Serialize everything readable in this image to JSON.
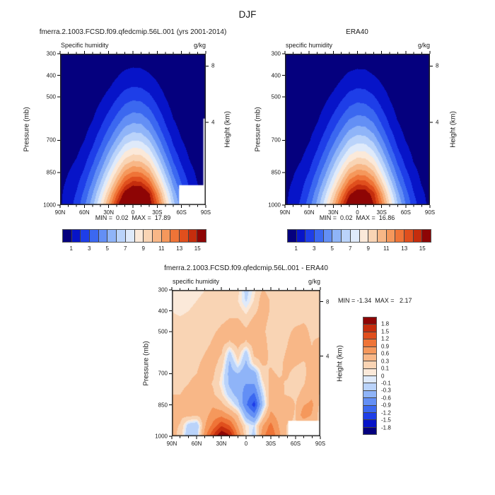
{
  "main_title": "DJF",
  "panels": [
    {
      "title": "fmerra.2.1003.FCSD.f09.qfedcmip.56L.001 (yrs 2001-2014)",
      "subtitle_left": "Specific humidity",
      "subtitle_right": "g/kg",
      "minmax": "MIN =  0.02  MAX =  17.89"
    },
    {
      "title": "ERA40",
      "subtitle_left": "specific humidity",
      "subtitle_right": "g/kg",
      "minmax": "MIN =  0.02  MAX =  16.86"
    },
    {
      "title": "fmerra.2.1003.FCSD.f09.qfedcmip.56L.001 - ERA40",
      "subtitle_left": "specific humidity",
      "subtitle_right": "g/kg",
      "minmax": "MIN = -1.34  MAX =   2.17"
    }
  ],
  "axes": {
    "pressure_label": "Pressure (mb)",
    "height_label": "Height (km)",
    "pressure_ticks": [
      "300",
      "400",
      "500",
      "700",
      "850",
      "1000"
    ],
    "pressure_tick_values": [
      300,
      400,
      500,
      700,
      850,
      1000
    ],
    "lat_ticks": [
      "90N",
      "60N",
      "30N",
      "0",
      "30S",
      "60S",
      "90S"
    ],
    "lat_tick_values": [
      90,
      60,
      30,
      0,
      -30,
      -60,
      -90
    ],
    "height_ticks": [
      "8",
      "4"
    ],
    "height_tick_pressures": [
      356.5,
      616.6
    ],
    "pressure_range": [
      300,
      1000
    ],
    "lat_range": [
      90,
      -90
    ]
  },
  "colorbar_top_labels": [
    "1",
    "3",
    "5",
    "7",
    "9",
    "11",
    "13",
    "15"
  ],
  "colorbar_diff_labels": [
    "1.8",
    "1.5",
    "1.2",
    "0.9",
    "0.6",
    "0.3",
    "0.1",
    "0",
    "-0.1",
    "-0.3",
    "-0.6",
    "-0.9",
    "-1.2",
    "-1.5",
    "-1.8"
  ],
  "palette": [
    "#05007E",
    "#0714C8",
    "#1E3EE8",
    "#3B68F0",
    "#638FF5",
    "#8FB4F8",
    "#BAD3FA",
    "#DFEAFA",
    "#FBE9D9",
    "#F9D4B4",
    "#F8B787",
    "#F5985C",
    "#EF7437",
    "#E04F1D",
    "#C52D0D",
    "#8E0505"
  ],
  "chart_data": [
    {
      "id": "model",
      "type": "heatmap",
      "title": "fmerra.2.1003.FCSD.f09.qfedcmip.56L.001 (yrs 2001-2014)",
      "variable": "Specific humidity",
      "units": "g/kg",
      "min": 0.02,
      "max": 17.89,
      "levels": [
        1,
        2,
        3,
        4,
        5,
        6,
        7,
        8,
        9,
        10,
        11,
        12,
        13,
        14,
        15
      ],
      "lat": [
        90,
        80,
        70,
        60,
        50,
        40,
        30,
        20,
        10,
        0,
        -10,
        -20,
        -30,
        -40,
        -50,
        -60,
        -70,
        -80,
        -90
      ],
      "pressure": [
        300,
        350,
        400,
        450,
        500,
        550,
        600,
        650,
        700,
        750,
        800,
        850,
        900,
        950,
        1000
      ],
      "values": [
        [
          0.02,
          0.03,
          0.04,
          0.05,
          0.08,
          0.12,
          0.2,
          0.3,
          0.45,
          0.5,
          0.5,
          0.4,
          0.3,
          0.2,
          0.12,
          0.08,
          0.05,
          0.04,
          0.03
        ],
        [
          0.03,
          0.04,
          0.05,
          0.08,
          0.12,
          0.2,
          0.35,
          0.55,
          0.78,
          0.88,
          0.85,
          0.7,
          0.5,
          0.3,
          0.18,
          0.1,
          0.07,
          0.05,
          0.04
        ],
        [
          0.04,
          0.05,
          0.07,
          0.12,
          0.2,
          0.35,
          0.6,
          0.92,
          1.25,
          1.38,
          1.32,
          1.1,
          0.8,
          0.5,
          0.25,
          0.14,
          0.09,
          0.06,
          0.05
        ],
        [
          0.05,
          0.07,
          0.1,
          0.18,
          0.3,
          0.55,
          0.9,
          1.32,
          1.78,
          1.98,
          1.9,
          1.6,
          1.15,
          0.7,
          0.38,
          0.2,
          0.12,
          0.08,
          0.06
        ],
        [
          0.07,
          0.1,
          0.15,
          0.28,
          0.5,
          0.85,
          1.3,
          1.9,
          2.48,
          2.75,
          2.65,
          2.25,
          1.6,
          1.0,
          0.55,
          0.3,
          0.17,
          0.1,
          0.08
        ],
        [
          0.1,
          0.14,
          0.22,
          0.4,
          0.7,
          1.2,
          1.8,
          2.55,
          3.28,
          3.6,
          3.5,
          3.0,
          2.15,
          1.35,
          0.75,
          0.42,
          0.24,
          0.14,
          0.1
        ],
        [
          0.14,
          0.2,
          0.3,
          0.55,
          0.95,
          1.6,
          2.4,
          3.3,
          4.2,
          4.55,
          4.45,
          3.85,
          2.8,
          1.8,
          1.0,
          0.58,
          0.33,
          0.19,
          0.13
        ],
        [
          0.2,
          0.28,
          0.42,
          0.75,
          1.3,
          2.1,
          3.1,
          4.2,
          5.25,
          5.65,
          5.55,
          4.8,
          3.55,
          2.3,
          1.35,
          0.78,
          0.45,
          0.26,
          0.17
        ],
        [
          0.28,
          0.4,
          0.6,
          1.0,
          1.7,
          2.7,
          3.9,
          5.2,
          6.45,
          6.95,
          6.85,
          6.0,
          4.5,
          3.0,
          1.8,
          1.05,
          0.6,
          0.35,
          0.22
        ],
        [
          0.4,
          0.55,
          0.8,
          1.35,
          2.2,
          3.4,
          4.85,
          6.4,
          7.85,
          8.45,
          8.35,
          7.4,
          5.6,
          3.8,
          2.3,
          1.4,
          0.8,
          0.45,
          0.28
        ],
        [
          0.55,
          0.75,
          1.1,
          1.75,
          2.8,
          4.2,
          5.9,
          7.75,
          9.45,
          10.15,
          10.0,
          9.0,
          6.9,
          4.8,
          3.0,
          1.85,
          1.05,
          0.6,
          0.35
        ],
        [
          0.7,
          1.0,
          1.4,
          2.2,
          3.5,
          5.1,
          7.1,
          9.25,
          11.3,
          12.15,
          12.0,
          10.8,
          8.4,
          5.9,
          3.8,
          2.4,
          1.4,
          0.8,
          0.45
        ],
        [
          0.82,
          1.15,
          1.75,
          2.75,
          4.2,
          6.1,
          8.4,
          10.95,
          13.35,
          14.45,
          14.3,
          12.9,
          10.1,
          7.2,
          4.7,
          3.0,
          1.8,
          1.0,
          0.6
        ],
        [
          0.88,
          1.35,
          2.1,
          3.3,
          5.0,
          7.2,
          9.9,
          12.85,
          15.65,
          16.95,
          16.8,
          15.2,
          12.0,
          8.6,
          5.7,
          3.7,
          2.2,
          1.3,
          0.7
        ],
        [
          0.9,
          1.5,
          2.4,
          3.8,
          5.7,
          8.2,
          11.2,
          14.5,
          17.4,
          17.89,
          17.7,
          16.0,
          13.2,
          9.7,
          6.5,
          4.3,
          2.6,
          1.5,
          0.8
        ]
      ],
      "mask_rects": [
        {
          "lat": [
            -57,
            -90
          ],
          "p": [
            908,
            1000
          ]
        },
        {
          "lat": [
            -87,
            -90
          ],
          "p": [
            600,
            1000
          ]
        }
      ]
    },
    {
      "id": "era40",
      "type": "heatmap",
      "title": "ERA40",
      "variable": "specific humidity",
      "units": "g/kg",
      "min": 0.02,
      "max": 16.86,
      "levels": [
        1,
        2,
        3,
        4,
        5,
        6,
        7,
        8,
        9,
        10,
        11,
        12,
        13,
        14,
        15
      ],
      "lat": [
        90,
        80,
        70,
        60,
        50,
        40,
        30,
        20,
        10,
        0,
        -10,
        -20,
        -30,
        -40,
        -50,
        -60,
        -70,
        -80,
        -90
      ],
      "pressure": [
        300,
        350,
        400,
        450,
        500,
        550,
        600,
        650,
        700,
        750,
        800,
        850,
        900,
        950,
        1000
      ],
      "values": [
        [
          0.02,
          0.03,
          0.04,
          0.05,
          0.07,
          0.11,
          0.18,
          0.28,
          0.42,
          0.48,
          0.47,
          0.38,
          0.28,
          0.18,
          0.11,
          0.07,
          0.05,
          0.04,
          0.03
        ],
        [
          0.03,
          0.04,
          0.05,
          0.07,
          0.11,
          0.18,
          0.32,
          0.5,
          0.72,
          0.82,
          0.8,
          0.66,
          0.46,
          0.28,
          0.16,
          0.09,
          0.06,
          0.05,
          0.04
        ],
        [
          0.04,
          0.05,
          0.06,
          0.11,
          0.18,
          0.32,
          0.55,
          0.85,
          1.18,
          1.3,
          1.25,
          1.02,
          0.74,
          0.46,
          0.23,
          0.13,
          0.08,
          0.06,
          0.05
        ],
        [
          0.05,
          0.06,
          0.09,
          0.16,
          0.28,
          0.5,
          0.84,
          1.24,
          1.68,
          1.88,
          1.8,
          1.5,
          1.08,
          0.66,
          0.35,
          0.18,
          0.11,
          0.07,
          0.06
        ],
        [
          0.06,
          0.09,
          0.14,
          0.26,
          0.46,
          0.8,
          1.22,
          1.8,
          2.35,
          2.6,
          2.5,
          2.12,
          1.5,
          0.94,
          0.5,
          0.28,
          0.16,
          0.09,
          0.07
        ],
        [
          0.09,
          0.13,
          0.2,
          0.37,
          0.65,
          1.12,
          1.7,
          2.4,
          3.1,
          3.4,
          3.3,
          2.84,
          2.0,
          1.26,
          0.7,
          0.4,
          0.22,
          0.13,
          0.09
        ],
        [
          0.13,
          0.18,
          0.28,
          0.5,
          0.88,
          1.5,
          2.26,
          3.12,
          3.95,
          4.3,
          4.2,
          3.64,
          2.64,
          1.68,
          0.94,
          0.54,
          0.3,
          0.18,
          0.12
        ],
        [
          0.18,
          0.26,
          0.39,
          0.7,
          1.2,
          1.96,
          2.92,
          3.96,
          4.95,
          5.35,
          5.25,
          4.55,
          3.35,
          2.16,
          1.26,
          0.73,
          0.42,
          0.24,
          0.16
        ],
        [
          0.26,
          0.37,
          0.56,
          0.93,
          1.6,
          2.52,
          3.66,
          4.9,
          6.1,
          6.6,
          6.5,
          5.7,
          4.25,
          2.82,
          1.68,
          0.98,
          0.56,
          0.33,
          0.21
        ],
        [
          0.37,
          0.51,
          0.75,
          1.26,
          2.06,
          3.18,
          4.55,
          6.0,
          7.4,
          8.0,
          7.9,
          7.0,
          5.3,
          3.58,
          2.16,
          1.31,
          0.75,
          0.42,
          0.26
        ],
        [
          0.51,
          0.7,
          1.03,
          1.64,
          2.62,
          3.94,
          5.55,
          7.3,
          8.9,
          9.6,
          9.45,
          8.5,
          6.5,
          4.52,
          2.82,
          1.73,
          0.98,
          0.56,
          0.33
        ],
        [
          0.65,
          0.93,
          1.31,
          2.06,
          3.28,
          4.8,
          6.7,
          8.7,
          10.7,
          11.5,
          11.35,
          10.2,
          7.9,
          5.55,
          3.57,
          2.25,
          1.31,
          0.75,
          0.42
        ],
        [
          0.77,
          1.08,
          1.64,
          2.58,
          3.95,
          5.75,
          7.9,
          10.3,
          12.6,
          13.7,
          13.55,
          12.2,
          9.5,
          6.77,
          4.42,
          2.82,
          1.69,
          0.94,
          0.56
        ],
        [
          0.83,
          1.27,
          1.97,
          3.1,
          4.7,
          6.8,
          9.3,
          12.1,
          14.8,
          16.0,
          15.9,
          14.35,
          11.3,
          8.1,
          5.36,
          3.48,
          2.07,
          1.22,
          0.66
        ],
        [
          0.85,
          1.41,
          2.26,
          3.57,
          5.36,
          7.7,
          10.5,
          13.6,
          16.4,
          16.86,
          16.7,
          15.1,
          12.4,
          9.1,
          6.1,
          4.04,
          2.44,
          1.41,
          0.75
        ]
      ],
      "mask_rects": []
    },
    {
      "id": "diff",
      "type": "heatmap",
      "title": "fmerra.2.1003.FCSD.f09.qfedcmip.56L.001 - ERA40",
      "variable": "specific humidity",
      "units": "g/kg",
      "min": -1.34,
      "max": 2.17,
      "levels": [
        -1.8,
        -1.5,
        -1.2,
        -0.9,
        -0.6,
        -0.3,
        -0.1,
        0,
        0.1,
        0.3,
        0.6,
        0.9,
        1.2,
        1.5,
        1.8
      ],
      "lat": [
        90,
        80,
        70,
        60,
        50,
        40,
        30,
        20,
        10,
        0,
        -10,
        -20,
        -30,
        -40,
        -50,
        -60,
        -70,
        -80,
        -90
      ],
      "pressure": [
        300,
        350,
        400,
        450,
        500,
        550,
        600,
        650,
        700,
        750,
        800,
        850,
        900,
        950,
        1000
      ],
      "values": [
        [
          0.1,
          0.1,
          0.08,
          0.08,
          0.1,
          0.12,
          0.15,
          0.18,
          0.15,
          -0.18,
          0.05,
          0.32,
          0.22,
          0.15,
          0.12,
          0.1,
          0.1,
          0.12,
          0.12
        ],
        [
          0.1,
          0.08,
          0.08,
          0.1,
          0.12,
          0.15,
          0.18,
          0.22,
          0.1,
          -0.12,
          0.12,
          0.42,
          0.28,
          0.18,
          0.12,
          0.1,
          0.12,
          0.15,
          0.12
        ],
        [
          0.1,
          0.08,
          0.1,
          0.12,
          0.15,
          0.18,
          0.22,
          0.26,
          0.2,
          0.05,
          0.25,
          0.4,
          0.28,
          0.2,
          0.15,
          0.12,
          0.18,
          0.18,
          0.15
        ],
        [
          0.12,
          0.12,
          0.14,
          0.15,
          0.18,
          0.22,
          0.28,
          0.32,
          0.35,
          0.22,
          0.38,
          0.35,
          0.26,
          0.2,
          0.18,
          0.22,
          0.28,
          0.2,
          0.15
        ],
        [
          0.15,
          0.15,
          0.17,
          0.18,
          0.22,
          0.28,
          0.34,
          0.38,
          0.45,
          0.35,
          0.45,
          0.33,
          0.24,
          0.18,
          0.22,
          0.38,
          0.42,
          0.22,
          0.18
        ],
        [
          0.17,
          0.17,
          0.19,
          0.22,
          0.25,
          0.32,
          0.38,
          0.28,
          0.4,
          0.28,
          0.42,
          0.38,
          0.23,
          0.17,
          0.28,
          0.48,
          0.48,
          0.28,
          0.42
        ],
        [
          0.2,
          0.2,
          0.22,
          0.25,
          0.3,
          0.36,
          0.32,
          -0.15,
          0.25,
          -0.2,
          0.38,
          0.38,
          0.26,
          0.19,
          0.33,
          0.43,
          0.38,
          0.33,
          0.52
        ],
        [
          0.22,
          0.22,
          0.26,
          0.28,
          0.33,
          0.38,
          0.22,
          -0.35,
          0.05,
          -0.35,
          0.18,
          0.33,
          0.28,
          0.23,
          0.38,
          0.33,
          0.28,
          0.38,
          0.48
        ],
        [
          0.26,
          0.26,
          0.28,
          0.3,
          0.36,
          0.33,
          0.08,
          -0.4,
          -0.3,
          -0.5,
          -0.45,
          0.22,
          0.33,
          0.28,
          0.33,
          0.23,
          0.23,
          0.43,
          0.38
        ],
        [
          0.28,
          0.28,
          0.3,
          0.33,
          0.38,
          0.28,
          0.03,
          -0.35,
          -0.5,
          -0.6,
          -0.6,
          0.03,
          0.38,
          0.33,
          0.28,
          0.19,
          0.28,
          0.48,
          0.33
        ],
        [
          0.3,
          0.3,
          0.33,
          0.36,
          0.4,
          0.33,
          0.13,
          -0.2,
          -0.4,
          -0.75,
          -0.95,
          -0.15,
          0.43,
          0.38,
          0.26,
          0.23,
          0.38,
          0.52,
          0.28
        ],
        [
          0.33,
          0.33,
          0.36,
          0.38,
          0.43,
          0.55,
          0.38,
          0.1,
          -0.2,
          -0.85,
          -1.34,
          -0.3,
          0.48,
          0.43,
          0.58,
          0.28,
          0.58,
          0.68,
          0.23
        ],
        [
          0.36,
          0.36,
          0.38,
          0.33,
          0.48,
          0.75,
          0.8,
          0.6,
          0.28,
          -0.42,
          -0.8,
          0.1,
          0.68,
          0.48,
          0.38,
          0.28,
          0.78,
          0.58,
          0.18
        ],
        [
          0.38,
          0.28,
          -0.22,
          -0.3,
          0.58,
          1.0,
          1.45,
          1.2,
          0.58,
          0.05,
          -0.1,
          0.58,
          1.0,
          0.58,
          0.28,
          0.28,
          0.28,
          0.28,
          0.28
        ],
        [
          0.43,
          0.18,
          -0.3,
          -0.2,
          0.78,
          1.55,
          2.17,
          1.85,
          0.88,
          0.1,
          -0.2,
          0.78,
          1.2,
          0.68,
          0.28,
          0.28,
          0.28,
          0.28,
          0.28
        ]
      ],
      "mask_rects": [
        {
          "lat": [
            -51,
            -90
          ],
          "p": [
            926,
            1000
          ]
        }
      ]
    }
  ]
}
